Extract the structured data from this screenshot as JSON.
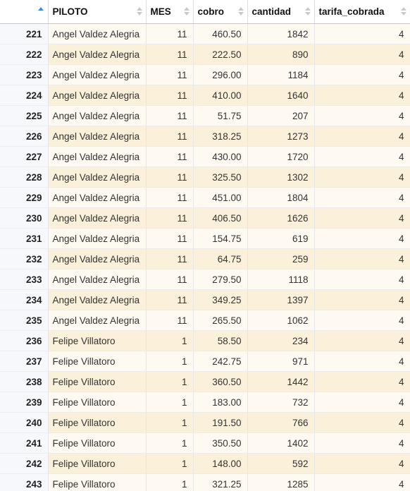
{
  "columns": {
    "index_header": "",
    "piloto": "PILOTO",
    "mes": "MES",
    "cobro": "cobro",
    "cantidad": "cantidad",
    "tarifa": "tarifa_cobrada"
  },
  "rows": [
    {
      "idx": "221",
      "piloto": "Angel Valdez Alegria",
      "mes": "11",
      "cobro": "460.50",
      "cantidad": "1842",
      "tarifa": "4"
    },
    {
      "idx": "222",
      "piloto": "Angel Valdez Alegria",
      "mes": "11",
      "cobro": "222.50",
      "cantidad": "890",
      "tarifa": "4"
    },
    {
      "idx": "223",
      "piloto": "Angel Valdez Alegria",
      "mes": "11",
      "cobro": "296.00",
      "cantidad": "1184",
      "tarifa": "4"
    },
    {
      "idx": "224",
      "piloto": "Angel Valdez Alegria",
      "mes": "11",
      "cobro": "410.00",
      "cantidad": "1640",
      "tarifa": "4"
    },
    {
      "idx": "225",
      "piloto": "Angel Valdez Alegria",
      "mes": "11",
      "cobro": "51.75",
      "cantidad": "207",
      "tarifa": "4"
    },
    {
      "idx": "226",
      "piloto": "Angel Valdez Alegria",
      "mes": "11",
      "cobro": "318.25",
      "cantidad": "1273",
      "tarifa": "4"
    },
    {
      "idx": "227",
      "piloto": "Angel Valdez Alegria",
      "mes": "11",
      "cobro": "430.00",
      "cantidad": "1720",
      "tarifa": "4"
    },
    {
      "idx": "228",
      "piloto": "Angel Valdez Alegria",
      "mes": "11",
      "cobro": "325.50",
      "cantidad": "1302",
      "tarifa": "4"
    },
    {
      "idx": "229",
      "piloto": "Angel Valdez Alegria",
      "mes": "11",
      "cobro": "451.00",
      "cantidad": "1804",
      "tarifa": "4"
    },
    {
      "idx": "230",
      "piloto": "Angel Valdez Alegria",
      "mes": "11",
      "cobro": "406.50",
      "cantidad": "1626",
      "tarifa": "4"
    },
    {
      "idx": "231",
      "piloto": "Angel Valdez Alegria",
      "mes": "11",
      "cobro": "154.75",
      "cantidad": "619",
      "tarifa": "4"
    },
    {
      "idx": "232",
      "piloto": "Angel Valdez Alegria",
      "mes": "11",
      "cobro": "64.75",
      "cantidad": "259",
      "tarifa": "4"
    },
    {
      "idx": "233",
      "piloto": "Angel Valdez Alegria",
      "mes": "11",
      "cobro": "279.50",
      "cantidad": "1118",
      "tarifa": "4"
    },
    {
      "idx": "234",
      "piloto": "Angel Valdez Alegria",
      "mes": "11",
      "cobro": "349.25",
      "cantidad": "1397",
      "tarifa": "4"
    },
    {
      "idx": "235",
      "piloto": "Angel Valdez Alegria",
      "mes": "11",
      "cobro": "265.50",
      "cantidad": "1062",
      "tarifa": "4"
    },
    {
      "idx": "236",
      "piloto": "Felipe Villatoro",
      "mes": "1",
      "cobro": "58.50",
      "cantidad": "234",
      "tarifa": "4"
    },
    {
      "idx": "237",
      "piloto": "Felipe Villatoro",
      "mes": "1",
      "cobro": "242.75",
      "cantidad": "971",
      "tarifa": "4"
    },
    {
      "idx": "238",
      "piloto": "Felipe Villatoro",
      "mes": "1",
      "cobro": "360.50",
      "cantidad": "1442",
      "tarifa": "4"
    },
    {
      "idx": "239",
      "piloto": "Felipe Villatoro",
      "mes": "1",
      "cobro": "183.00",
      "cantidad": "732",
      "tarifa": "4"
    },
    {
      "idx": "240",
      "piloto": "Felipe Villatoro",
      "mes": "1",
      "cobro": "191.50",
      "cantidad": "766",
      "tarifa": "4"
    },
    {
      "idx": "241",
      "piloto": "Felipe Villatoro",
      "mes": "1",
      "cobro": "350.50",
      "cantidad": "1402",
      "tarifa": "4"
    },
    {
      "idx": "242",
      "piloto": "Felipe Villatoro",
      "mes": "1",
      "cobro": "148.00",
      "cantidad": "592",
      "tarifa": "4"
    },
    {
      "idx": "243",
      "piloto": "Felipe Villatoro",
      "mes": "1",
      "cobro": "321.25",
      "cantidad": "1285",
      "tarifa": "4"
    }
  ],
  "sort": {
    "column": "index",
    "direction": "ascending",
    "icon": "sort-ascending-icon"
  }
}
